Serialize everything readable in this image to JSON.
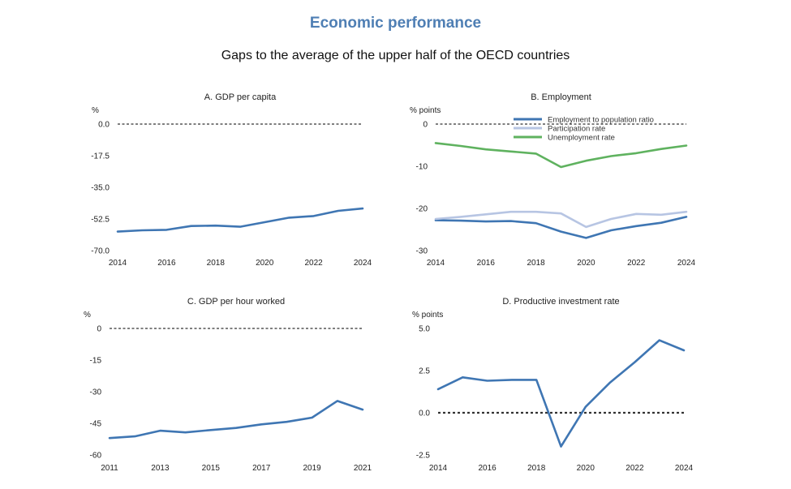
{
  "title": "Economic performance",
  "subtitle": "Gaps to the average of the upper half of the OECD countries",
  "colors": {
    "title": "#4f7fb4",
    "line_dark_blue": "#3f76b3",
    "line_light_blue": "#b7c5e3",
    "line_green": "#5fb25f",
    "zero_line": "#333333"
  },
  "chart_data": [
    {
      "type": "line",
      "title": "A. GDP per capita",
      "unit": "%",
      "x": [
        2014,
        2015,
        2016,
        2017,
        2018,
        2019,
        2020,
        2021,
        2022,
        2023,
        2024
      ],
      "xticks": [
        2014,
        2016,
        2018,
        2020,
        2022,
        2024
      ],
      "ylim": [
        -70,
        0
      ],
      "yticks": [
        0,
        -17.5,
        -35,
        -52.5,
        -70
      ],
      "ytick_labels": [
        "0.0",
        "-17.5",
        "-35.0",
        "-52.5",
        "-70.0"
      ],
      "reference_line": 0,
      "series": [
        {
          "color": "#3f76b3",
          "values": [
            -59.5,
            -58.8,
            -58.5,
            -56.4,
            -56.2,
            -56.8,
            -54.3,
            -51.8,
            -50.9,
            -48.0,
            -46.7
          ]
        }
      ]
    },
    {
      "type": "line",
      "title": "B. Employment",
      "unit": "% points",
      "x": [
        2014,
        2015,
        2016,
        2017,
        2018,
        2019,
        2020,
        2021,
        2022,
        2023,
        2024
      ],
      "xticks": [
        2014,
        2016,
        2018,
        2020,
        2022,
        2024
      ],
      "ylim": [
        -30,
        0
      ],
      "yticks": [
        0,
        -10,
        -20,
        -30
      ],
      "ytick_labels": [
        "0",
        "-10",
        "-20",
        "-30"
      ],
      "reference_line": 0,
      "legend": "top",
      "series": [
        {
          "name": "Employment to population ratio",
          "color": "#3f76b3",
          "values": [
            -22.8,
            -22.9,
            -23.1,
            -23.0,
            -23.5,
            -25.5,
            -27.0,
            -25.2,
            -24.2,
            -23.4,
            -22.0
          ]
        },
        {
          "name": "Participation rate",
          "color": "#b7c5e3",
          "values": [
            -22.5,
            -22.0,
            -21.4,
            -20.8,
            -20.8,
            -21.2,
            -24.4,
            -22.5,
            -21.3,
            -21.5,
            -20.8
          ]
        },
        {
          "name": "Unemployment rate",
          "color": "#5fb25f",
          "values": [
            -4.5,
            -5.2,
            -6.0,
            -6.5,
            -7.0,
            -10.2,
            -8.7,
            -7.6,
            -6.9,
            -5.9,
            -5.1
          ]
        }
      ]
    },
    {
      "type": "line",
      "title": "C. GDP per hour worked",
      "unit": "%",
      "x": [
        2011,
        2012,
        2013,
        2014,
        2015,
        2016,
        2017,
        2018,
        2019,
        2020,
        2021
      ],
      "xticks": [
        2011,
        2013,
        2015,
        2017,
        2019,
        2021
      ],
      "ylim": [
        -60,
        0
      ],
      "yticks": [
        0,
        -15,
        -30,
        -45,
        -60
      ],
      "ytick_labels": [
        "0",
        "-15",
        "-30",
        "-45",
        "-60"
      ],
      "reference_line": 0,
      "series": [
        {
          "color": "#3f76b3",
          "values": [
            -52.0,
            -51.2,
            -48.5,
            -49.3,
            -48.2,
            -47.2,
            -45.5,
            -44.3,
            -42.3,
            -34.4,
            -38.5
          ]
        }
      ]
    },
    {
      "type": "line",
      "title": "D. Productive investment rate",
      "unit": "% points",
      "x": [
        2014,
        2015,
        2016,
        2017,
        2018,
        2019,
        2020,
        2021,
        2022,
        2023,
        2024
      ],
      "xticks": [
        2014,
        2016,
        2018,
        2020,
        2022,
        2024
      ],
      "ylim": [
        -2.5,
        5
      ],
      "yticks": [
        5,
        2.5,
        0,
        -2.5
      ],
      "ytick_labels": [
        "5.0",
        "2.5",
        "0.0",
        "-2.5"
      ],
      "reference_line": 0,
      "series": [
        {
          "color": "#3f76b3",
          "values": [
            1.4,
            2.1,
            1.9,
            1.95,
            1.95,
            -2.0,
            0.35,
            1.8,
            3.0,
            4.3,
            3.7
          ]
        }
      ]
    }
  ]
}
